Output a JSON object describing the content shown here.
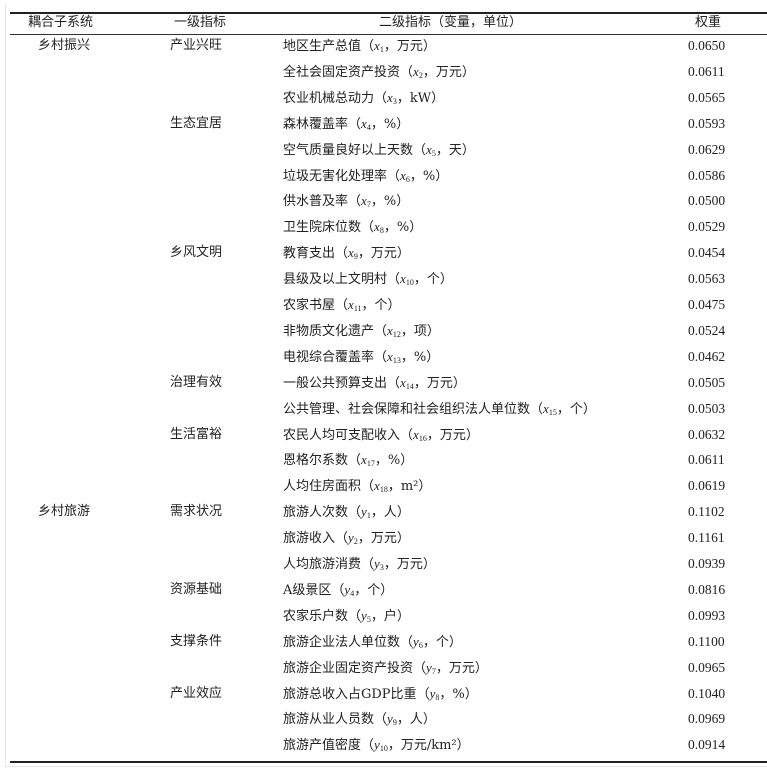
{
  "header": {
    "subsystem": "耦合子系统",
    "level1": "一级指标",
    "level2": "二级指标（变量，单位）",
    "weight": "权重"
  },
  "rows": [
    {
      "subsystem": "乡村振兴",
      "level1": "产业兴旺",
      "name": "地区生产总值",
      "var": "x",
      "idx": "1",
      "unit": "万元",
      "weight": "0.0650"
    },
    {
      "subsystem": "",
      "level1": "",
      "name": "全社会固定资产投资",
      "var": "x",
      "idx": "2",
      "unit": "万元",
      "weight": "0.0611"
    },
    {
      "subsystem": "",
      "level1": "",
      "name": "农业机械总动力",
      "var": "x",
      "idx": "3",
      "unit": "kW",
      "weight": "0.0565"
    },
    {
      "subsystem": "",
      "level1": "生态宜居",
      "name": "森林覆盖率",
      "var": "x",
      "idx": "4",
      "unit": "%",
      "weight": "0.0593"
    },
    {
      "subsystem": "",
      "level1": "",
      "name": "空气质量良好以上天数",
      "var": "x",
      "idx": "5",
      "unit": "天",
      "weight": "0.0629"
    },
    {
      "subsystem": "",
      "level1": "",
      "name": "垃圾无害化处理率",
      "var": "x",
      "idx": "6",
      "unit": "%",
      "weight": "0.0586"
    },
    {
      "subsystem": "",
      "level1": "",
      "name": "供水普及率",
      "var": "x",
      "idx": "7",
      "unit": "%",
      "weight": "0.0500"
    },
    {
      "subsystem": "",
      "level1": "",
      "name": "卫生院床位数",
      "var": "x",
      "idx": "8",
      "unit": "%",
      "weight": "0.0529"
    },
    {
      "subsystem": "",
      "level1": "乡风文明",
      "name": "教育支出",
      "var": "x",
      "idx": "9",
      "unit": "万元",
      "weight": "0.0454"
    },
    {
      "subsystem": "",
      "level1": "",
      "name": "县级及以上文明村",
      "var": "x",
      "idx": "10",
      "unit": "个",
      "weight": "0.0563"
    },
    {
      "subsystem": "",
      "level1": "",
      "name": "农家书屋",
      "var": "x",
      "idx": "11",
      "unit": "个",
      "weight": "0.0475"
    },
    {
      "subsystem": "",
      "level1": "",
      "name": "非物质文化遗产",
      "var": "x",
      "idx": "12",
      "unit": "项",
      "weight": "0.0524"
    },
    {
      "subsystem": "",
      "level1": "",
      "name": "电视综合覆盖率",
      "var": "x",
      "idx": "13",
      "unit": "%",
      "weight": "0.0462"
    },
    {
      "subsystem": "",
      "level1": "治理有效",
      "name": "一般公共预算支出",
      "var": "x",
      "idx": "14",
      "unit": "万元",
      "weight": "0.0505"
    },
    {
      "subsystem": "",
      "level1": "",
      "name": "公共管理、社会保障和社会组织法人单位数",
      "var": "x",
      "idx": "15",
      "unit": "个",
      "weight": "0.0503"
    },
    {
      "subsystem": "",
      "level1": "生活富裕",
      "name": "农民人均可支配收入",
      "var": "x",
      "idx": "16",
      "unit": "万元",
      "weight": "0.0632"
    },
    {
      "subsystem": "",
      "level1": "",
      "name": "恩格尔系数",
      "var": "x",
      "idx": "17",
      "unit": "%",
      "weight": "0.0611"
    },
    {
      "subsystem": "",
      "level1": "",
      "name": "人均住房面积",
      "var": "x",
      "idx": "18",
      "unit": "m²",
      "weight": "0.0619"
    },
    {
      "subsystem": "乡村旅游",
      "level1": "需求状况",
      "name": "旅游人次数",
      "var": "y",
      "idx": "1",
      "unit": "人",
      "weight": "0.1102"
    },
    {
      "subsystem": "",
      "level1": "",
      "name": "旅游收入",
      "var": "y",
      "idx": "2",
      "unit": "万元",
      "weight": "0.1161"
    },
    {
      "subsystem": "",
      "level1": "",
      "name": "人均旅游消费",
      "var": "y",
      "idx": "3",
      "unit": "万元",
      "weight": "0.0939"
    },
    {
      "subsystem": "",
      "level1": "资源基础",
      "name": "A级景区",
      "var": "y",
      "idx": "4",
      "unit": "个",
      "weight": "0.0816"
    },
    {
      "subsystem": "",
      "level1": "",
      "name": "农家乐户数",
      "var": "y",
      "idx": "5",
      "unit": "户",
      "weight": "0.0993"
    },
    {
      "subsystem": "",
      "level1": "支撑条件",
      "name": "旅游企业法人单位数",
      "var": "y",
      "idx": "6",
      "unit": "个",
      "weight": "0.1100"
    },
    {
      "subsystem": "",
      "level1": "",
      "name": "旅游企业固定资产投资",
      "var": "y",
      "idx": "7",
      "unit": "万元",
      "weight": "0.0965"
    },
    {
      "subsystem": "",
      "level1": "产业效应",
      "name": "旅游总收入占GDP比重",
      "var": "y",
      "idx": "8",
      "unit": "%",
      "weight": "0.1040"
    },
    {
      "subsystem": "",
      "level1": "",
      "name": "旅游从业人员数",
      "var": "y",
      "idx": "9",
      "unit": "人",
      "weight": "0.0969"
    },
    {
      "subsystem": "",
      "level1": "",
      "name": "旅游产值密度",
      "var": "y",
      "idx": "10",
      "unit": "万元/km²",
      "weight": "0.0914"
    }
  ]
}
